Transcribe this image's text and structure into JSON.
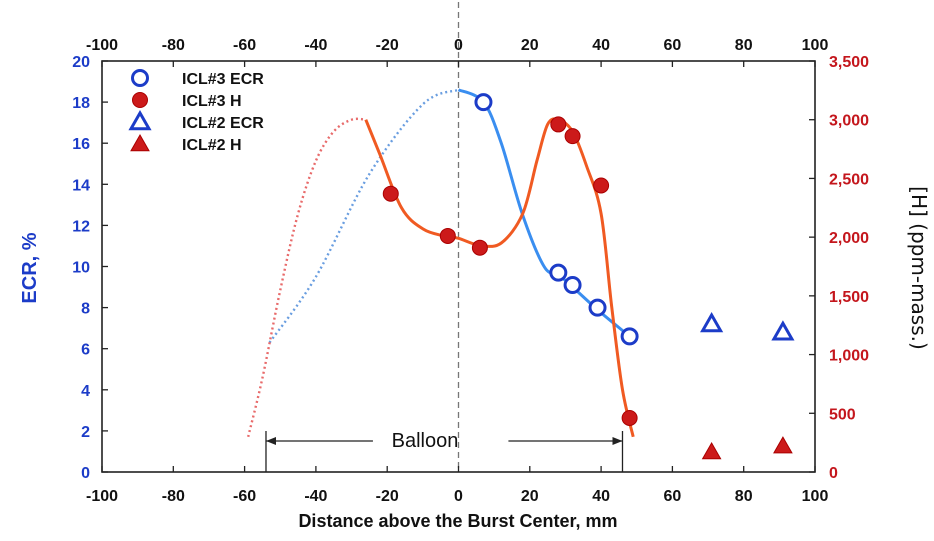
{
  "chart_data": {
    "type": "scatter",
    "xlabel": "Distance above the Burst Center, mm",
    "ylabel_left": "ECR, %",
    "ylabel_right": "[H] (ppm-mass.)",
    "xlim": [
      -100,
      100
    ],
    "ylim_left": [
      0,
      20
    ],
    "ylim_right": [
      0,
      3500
    ],
    "x_ticks": [
      -100,
      -80,
      -60,
      -40,
      -20,
      0,
      20,
      40,
      60,
      80,
      100
    ],
    "y_left_ticks": [
      0,
      2,
      4,
      6,
      8,
      10,
      12,
      14,
      16,
      18,
      20
    ],
    "y_right_ticks": [
      "0",
      "500",
      "1,000",
      "1,500",
      "2,000",
      "2,500",
      "3,000",
      "3,500"
    ],
    "y_right_tick_values": [
      0,
      500,
      1000,
      1500,
      2000,
      2500,
      3000,
      3500
    ],
    "legend_position": "top-left",
    "annotation": "Balloon",
    "balloon_range": [
      -54,
      46
    ],
    "colors": {
      "blue": "#1c3cc8",
      "red": "#cc1a1a",
      "blue_line": "#3a8ef0",
      "orange_line": "#f05a22",
      "dotted_red": "#e86a6a",
      "dotted_blue": "#6a9ee0"
    },
    "series": [
      {
        "name": "ICL#3 ECR",
        "axis": "left",
        "marker": "open-circle",
        "x": [
          7,
          28,
          32,
          39,
          48
        ],
        "y": [
          18.0,
          9.7,
          9.1,
          8.0,
          6.6
        ]
      },
      {
        "name": "ICL#3 H",
        "axis": "right",
        "marker": "filled-circle",
        "x": [
          -19,
          -3,
          6,
          28,
          32,
          40,
          48
        ],
        "y": [
          2370,
          2010,
          1910,
          2960,
          2860,
          2440,
          460
        ]
      },
      {
        "name": "ICL#2 ECR",
        "axis": "left",
        "marker": "open-triangle",
        "x": [
          71,
          91
        ],
        "y": [
          7.2,
          6.8
        ]
      },
      {
        "name": "ICL#2 H",
        "axis": "right",
        "marker": "filled-triangle",
        "x": [
          71,
          91
        ],
        "y": [
          170,
          220
        ]
      }
    ],
    "curves": [
      {
        "style": "solid",
        "axis": "left",
        "color_key": "blue_line",
        "x": [
          0,
          7,
          12,
          18,
          24,
          28,
          32,
          39,
          48
        ],
        "y": [
          18.6,
          18.0,
          16.0,
          12.5,
          10.0,
          9.6,
          9.0,
          7.9,
          6.6
        ]
      },
      {
        "style": "dotted",
        "axis": "left",
        "color_key": "dotted_blue",
        "x": [
          -53,
          -40,
          -25,
          -10,
          0
        ],
        "y": [
          6.3,
          9.5,
          14.5,
          17.9,
          18.6
        ]
      },
      {
        "style": "solid",
        "axis": "right",
        "color_key": "orange_line",
        "x": [
          -26,
          -22,
          -16,
          -10,
          -4,
          0,
          6,
          12,
          18,
          22,
          25,
          28,
          32,
          36,
          40,
          43,
          46,
          49
        ],
        "y": [
          3000,
          2700,
          2250,
          2070,
          2010,
          1990,
          1930,
          1950,
          2200,
          2650,
          2960,
          3000,
          2900,
          2600,
          2200,
          1400,
          700,
          300
        ]
      },
      {
        "style": "dotted",
        "axis": "right",
        "color_key": "dotted_red",
        "x": [
          -59,
          -55,
          -50,
          -45,
          -40,
          -35,
          -30,
          -26
        ],
        "y": [
          300,
          800,
          1550,
          2200,
          2650,
          2900,
          3000,
          3000
        ]
      }
    ]
  }
}
